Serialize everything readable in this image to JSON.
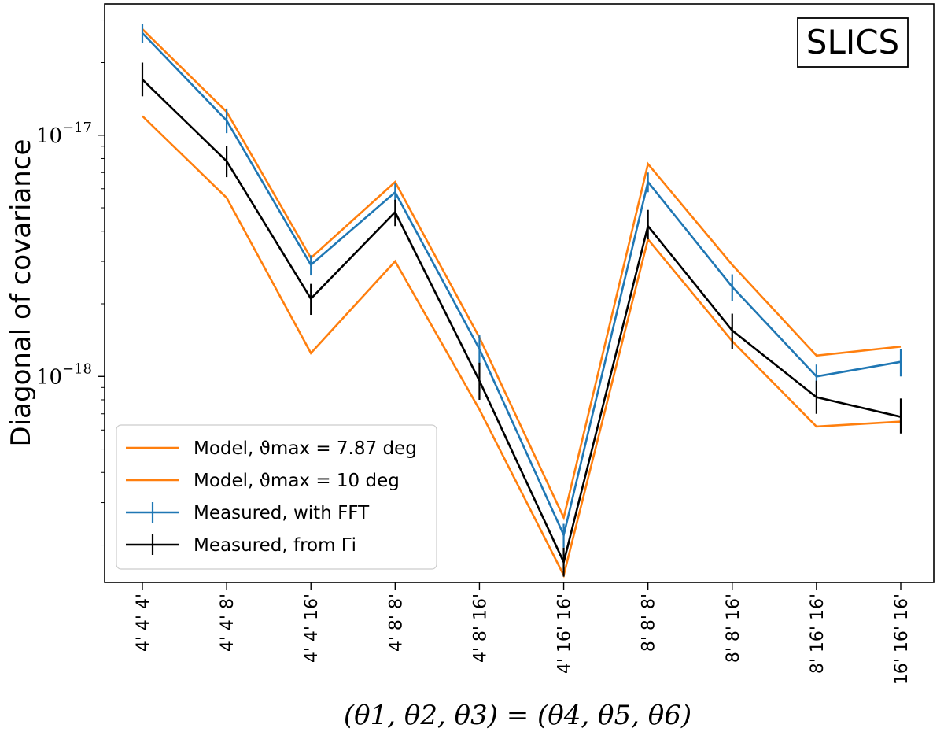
{
  "chart_data": {
    "type": "line",
    "title": "",
    "tag": "SLICS",
    "ylabel": "Diagonal of covariance",
    "xlabel": "(θ1, θ2, θ3) = (θ4, θ5, θ6)",
    "yscale": "log",
    "ylim": [
      1.4e-19,
      3.5e-17
    ],
    "yticks": [
      {
        "value": 1e-17,
        "base": "10",
        "exp": "−17"
      },
      {
        "value": 1e-18,
        "base": "10",
        "exp": "−18"
      }
    ],
    "categories": [
      "4' 4' 4'",
      "4' 4' 8'",
      "4' 4' 16'",
      "4' 8' 8'",
      "4' 8' 16'",
      "4' 16' 16'",
      "8' 8' 8'",
      "8' 8' 16'",
      "8' 16' 16'",
      "16' 16' 16'"
    ],
    "grid": false,
    "legend_position": "lower-left",
    "series": [
      {
        "name": "Model, ϑmax = 7.87 deg",
        "color": "#ff7f0e",
        "values": [
          1.2e-17,
          5.5e-18,
          1.25e-18,
          3e-18,
          7.3e-19,
          1.5e-19,
          3.7e-18,
          1.4e-18,
          6.2e-19,
          6.5e-19
        ]
      },
      {
        "name": "Model, ϑmax = 10 deg",
        "color": "#ff7f0e",
        "values": [
          2.75e-17,
          1.25e-17,
          3.1e-18,
          6.4e-18,
          1.45e-18,
          2.6e-19,
          7.6e-18,
          2.9e-18,
          1.22e-18,
          1.33e-18
        ]
      },
      {
        "name": "Measured, with FFT",
        "color": "#1f77b4",
        "values": [
          2.65e-17,
          1.15e-17,
          2.9e-18,
          5.8e-18,
          1.3e-18,
          2.2e-19,
          6.4e-18,
          2.35e-18,
          1e-18,
          1.15e-18
        ],
        "err_low": [
          2.42e-17,
          1.02e-17,
          2.62e-18,
          5.3e-18,
          1.12e-18,
          1.95e-19,
          5.8e-18,
          2.05e-18,
          8.8e-19,
          1e-18
        ],
        "err_high": [
          2.9e-17,
          1.29e-17,
          3.18e-18,
          6.3e-18,
          1.48e-18,
          2.45e-19,
          7e-18,
          2.65e-18,
          1.12e-18,
          1.3e-18
        ]
      },
      {
        "name": "Measured, from Γi",
        "color": "#000000",
        "values": [
          1.7e-17,
          7.8e-18,
          2.1e-18,
          4.8e-18,
          9.6e-19,
          1.7e-19,
          4.2e-18,
          1.55e-18,
          8.2e-19,
          6.8e-19
        ],
        "err_low": [
          1.45e-17,
          6.7e-18,
          1.8e-18,
          4.2e-18,
          8e-19,
          1.48e-19,
          3.7e-18,
          1.3e-18,
          7e-19,
          5.8e-19
        ],
        "err_high": [
          2e-17,
          9e-18,
          2.42e-18,
          5.4e-18,
          1.14e-18,
          1.95e-19,
          4.9e-18,
          1.82e-18,
          9.6e-19,
          8.1e-19
        ]
      }
    ]
  }
}
